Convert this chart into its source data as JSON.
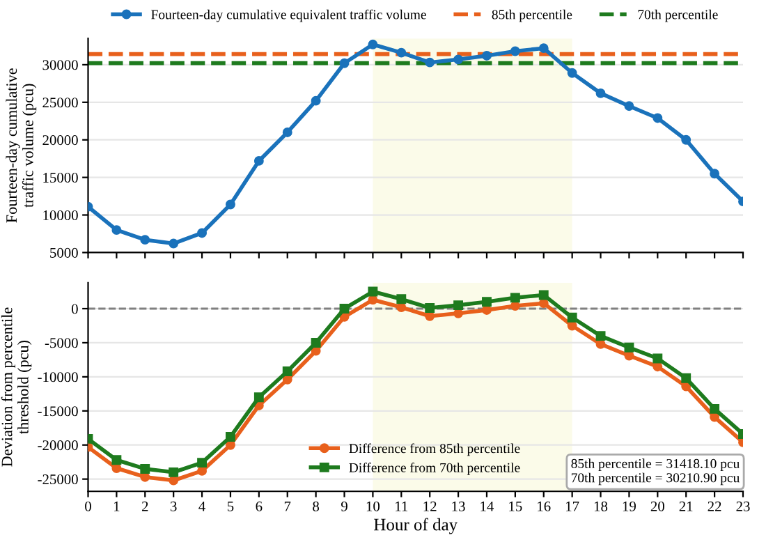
{
  "chart_data": [
    {
      "type": "line",
      "ylabel": "Fourteen-day cumulative\ntraffic volume (pcu)",
      "x": [
        0,
        1,
        2,
        3,
        4,
        5,
        6,
        7,
        8,
        9,
        10,
        11,
        12,
        13,
        14,
        15,
        16,
        17,
        18,
        19,
        20,
        21,
        22,
        23
      ],
      "series": [
        {
          "name": "Fourteen-day cumulative equivalent traffic volume",
          "color": "#1a72bb",
          "marker": "circle",
          "values": [
            11100,
            8000,
            6700,
            6200,
            7600,
            11400,
            17200,
            21000,
            25200,
            30200,
            32700,
            31600,
            30300,
            30700,
            31200,
            31800,
            32200,
            28900,
            26200,
            24500,
            22900,
            20000,
            15500,
            11800
          ]
        }
      ],
      "ref_lines": [
        {
          "axis": "y",
          "value": 31418.1,
          "label": "85th percentile",
          "color": "#e8601c",
          "line_style": "dashed"
        },
        {
          "axis": "y",
          "value": 30210.9,
          "label": "70th percentile",
          "color": "#1e7b1e",
          "line_style": "dashed"
        }
      ],
      "bands": [
        {
          "axis": "x",
          "from": 10,
          "to": 17,
          "color": "#fbfbe9"
        }
      ],
      "xlim": [
        0,
        23
      ],
      "xticks": [
        0,
        1,
        2,
        3,
        4,
        5,
        6,
        7,
        8,
        9,
        10,
        11,
        12,
        13,
        14,
        15,
        16,
        17,
        18,
        19,
        20,
        21,
        22,
        23
      ],
      "ylim": [
        5000,
        33500
      ],
      "yticks": [
        5000,
        10000,
        15000,
        20000,
        25000,
        30000
      ],
      "grid": "y",
      "legend": "top",
      "line_style": "solid",
      "tick_labels": "y"
    },
    {
      "type": "line",
      "xlabel": "Hour of day",
      "ylabel": "Deviation from percentile\nthreshold (pcu)",
      "x": [
        0,
        1,
        2,
        3,
        4,
        5,
        6,
        7,
        8,
        9,
        10,
        11,
        12,
        13,
        14,
        15,
        16,
        17,
        18,
        19,
        20,
        21,
        22,
        23
      ],
      "series": [
        {
          "name": "Difference from 85th percentile",
          "color": "#e8601c",
          "marker": "circle",
          "values": [
            -20300,
            -23400,
            -24700,
            -25200,
            -23800,
            -20000,
            -14200,
            -10400,
            -6200,
            -1200,
            1300,
            200,
            -1100,
            -700,
            -200,
            400,
            800,
            -2500,
            -5200,
            -6900,
            -8500,
            -11400,
            -15900,
            -19600
          ]
        },
        {
          "name": "Difference from 70th percentile",
          "color": "#1e7b1e",
          "marker": "square",
          "values": [
            -19100,
            -22200,
            -23500,
            -24000,
            -22600,
            -18800,
            -13000,
            -9200,
            -5000,
            0,
            2500,
            1400,
            100,
            500,
            1000,
            1600,
            2000,
            -1300,
            -4000,
            -5700,
            -7300,
            -10200,
            -14700,
            -18400
          ]
        }
      ],
      "ref_lines": [
        {
          "axis": "y",
          "value": 0,
          "color": "#808080",
          "line_style": "dashed"
        }
      ],
      "bands": [
        {
          "axis": "x",
          "from": 10,
          "to": 17,
          "color": "#fbfbe9"
        }
      ],
      "annotations": [
        "85th percentile = 31418.10 pcu\n70th percentile = 30210.90 pcu"
      ],
      "xlim": [
        0,
        23
      ],
      "xticks": [
        0,
        1,
        2,
        3,
        4,
        5,
        6,
        7,
        8,
        9,
        10,
        11,
        12,
        13,
        14,
        15,
        16,
        17,
        18,
        19,
        20,
        21,
        22,
        23
      ],
      "ylim": [
        -26800,
        3800
      ],
      "yticks": [
        -25000,
        -20000,
        -15000,
        -10000,
        -5000,
        0
      ],
      "grid": "y",
      "legend": "bottom",
      "line_style": "solid"
    }
  ]
}
